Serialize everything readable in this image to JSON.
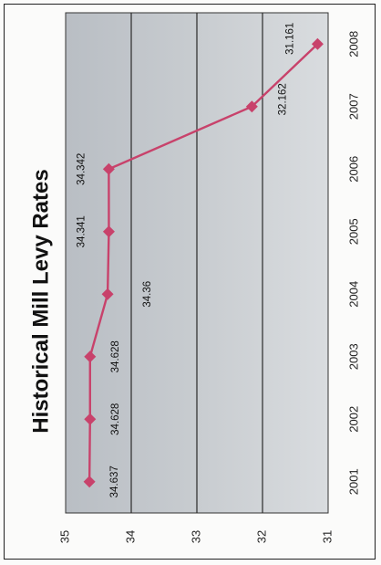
{
  "chart_data": {
    "type": "line",
    "title": "Historical Mill Levy Rates",
    "categories": [
      "2001",
      "2002",
      "2003",
      "2004",
      "2005",
      "2006",
      "2007",
      "2008"
    ],
    "series": [
      {
        "values": [
          34.637,
          34.628,
          34.628,
          34.36,
          34.341,
          34.342,
          32.162,
          31.161
        ],
        "data_labels": [
          "34.637",
          "34.628",
          "34.628",
          "34.36",
          "34.341",
          "34.342",
          "32.162",
          "31.161"
        ],
        "color": "#c8426b"
      }
    ],
    "value_axis": {
      "range": [
        31,
        35
      ],
      "ticks": [
        "35",
        "34",
        "33",
        "32",
        "31"
      ]
    },
    "orientation": "rotated-90-clockwise",
    "grid": true,
    "legend": "none",
    "colors": {
      "plot_background": "#c3c8cd",
      "gridline": "#2a2a2a",
      "line": "#c8426b"
    }
  }
}
